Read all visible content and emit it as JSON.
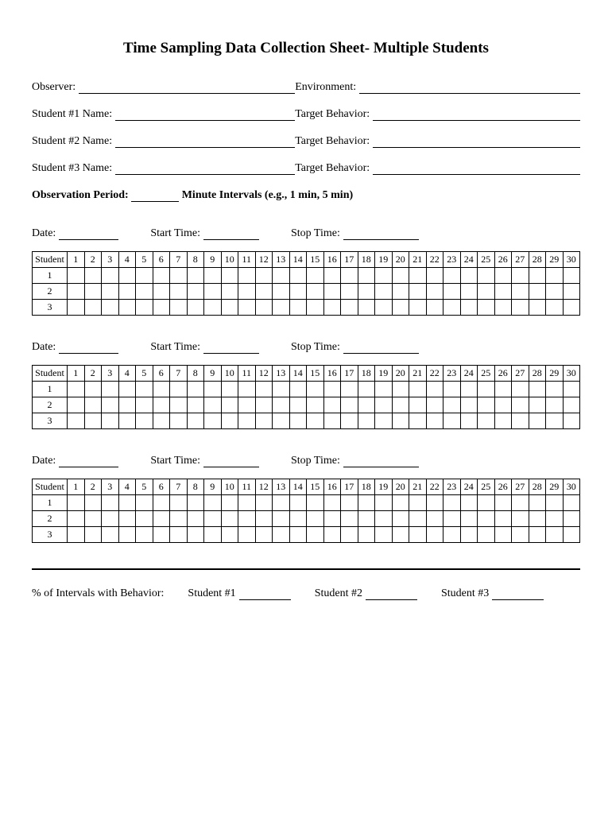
{
  "title": "Time Sampling Data Collection Sheet- Multiple Students",
  "fields": {
    "observer": "Observer:",
    "environment": "Environment:",
    "student1": "Student #1 Name:",
    "student2": "Student #2 Name:",
    "student3": "Student #3 Name:",
    "target1": "Target Behavior:",
    "target2": "Target Behavior:",
    "target3": "Target Behavior:"
  },
  "observation_period": {
    "prefix": "Observation Period:",
    "suffix": "Minute Intervals (e.g., 1 min, 5 min)"
  },
  "session_labels": {
    "date": "Date:",
    "start": "Start Time:",
    "stop": "Stop Time:"
  },
  "table": {
    "header_first": "Student",
    "columns": [
      "1",
      "2",
      "3",
      "4",
      "5",
      "6",
      "7",
      "8",
      "9",
      "10",
      "11",
      "12",
      "13",
      "14",
      "15",
      "16",
      "17",
      "18",
      "19",
      "20",
      "21",
      "22",
      "23",
      "24",
      "25",
      "26",
      "27",
      "28",
      "29",
      "30"
    ],
    "rows": [
      "1",
      "2",
      "3"
    ]
  },
  "session_count": 3,
  "footer": {
    "label": "% of Intervals with Behavior:",
    "s1": "Student #1",
    "s2": "Student #2",
    "s3": "Student #3"
  }
}
